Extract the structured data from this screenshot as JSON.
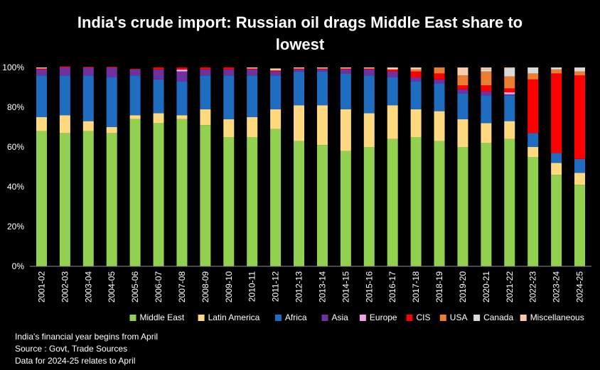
{
  "chart_data": {
    "type": "bar",
    "stacked": true,
    "title": "India's crude import: Russian oil drags Middle East share to lowest",
    "title_lines": [
      "India's crude import: Russian oil drags Middle East share to",
      "lowest"
    ],
    "categories": [
      "2001-02",
      "2002-03",
      "2003-04",
      "2004-05",
      "2005-06",
      "2006-07",
      "2007-08",
      "2008-09",
      "2009-10",
      "2010-11",
      "2011-12",
      "2012-13",
      "2013-14",
      "2014-15",
      "2015-16",
      "2016-17",
      "2017-18",
      "2018-19",
      "2019-20",
      "2020-21",
      "2021-22",
      "2022-23",
      "2023-24",
      "2024-25"
    ],
    "yticks": [
      "0%",
      "20%",
      "40%",
      "60%",
      "80%",
      "100%"
    ],
    "ylim": [
      0,
      100
    ],
    "grid": false,
    "legend_position": "bottom",
    "series": [
      {
        "name": "Middle East",
        "color": "#92D050",
        "values": [
          68,
          67,
          68,
          67,
          74,
          72,
          74,
          71,
          65,
          65,
          69,
          63,
          61,
          58,
          60,
          64,
          65,
          63,
          60,
          62,
          64,
          55,
          46,
          41
        ]
      },
      {
        "name": "Latin America",
        "color": "#FFD97F",
        "values": [
          7,
          9,
          5,
          3,
          2,
          5,
          2,
          8,
          9,
          10,
          10,
          18,
          20,
          21,
          17,
          17,
          14,
          15,
          14,
          10,
          9,
          5,
          6,
          6
        ]
      },
      {
        "name": "Africa",
        "color": "#1F6DC1",
        "values": [
          21,
          20,
          23,
          25,
          20,
          17,
          17,
          17,
          22,
          21,
          17,
          17,
          17,
          18,
          19,
          14,
          14,
          14,
          13,
          14,
          13,
          7,
          5,
          7
        ]
      },
      {
        "name": "Asia",
        "color": "#7030A0",
        "values": [
          3,
          4,
          4,
          5,
          3,
          5,
          5,
          3,
          3,
          3,
          2,
          1,
          1,
          2,
          3,
          3,
          2,
          2,
          2,
          2,
          0.5,
          0,
          0,
          0
        ]
      },
      {
        "name": "Europe",
        "color": "#F5A0E6",
        "values": [
          0,
          0,
          0,
          0,
          0,
          0,
          1,
          0,
          0,
          0,
          0,
          0,
          0,
          0,
          0,
          0,
          0,
          0,
          0,
          0,
          1,
          0,
          0,
          0
        ]
      },
      {
        "name": "CIS",
        "color": "#FF0000",
        "values": [
          0.5,
          0.5,
          0.3,
          0.3,
          0.3,
          1,
          1,
          1,
          1,
          0.5,
          0.5,
          0.5,
          0.5,
          0.5,
          0.5,
          1,
          3,
          3,
          2,
          3,
          2,
          27,
          40,
          42
        ]
      },
      {
        "name": "USA",
        "color": "#ED7D31",
        "values": [
          0,
          0,
          0,
          0,
          0,
          0,
          0,
          0,
          0,
          0,
          0,
          0,
          0,
          0,
          0,
          0,
          1,
          3,
          5,
          7,
          6,
          3,
          2,
          2
        ]
      },
      {
        "name": "Canada",
        "color": "#D9D9D9",
        "values": [
          0,
          0,
          0,
          0,
          0,
          0,
          0,
          0,
          0,
          0,
          0,
          0,
          0,
          0,
          0,
          0,
          0,
          0,
          0,
          1,
          4,
          3,
          1,
          2
        ]
      },
      {
        "name": "Miscellaneous",
        "color": "#F8CBAD",
        "values": [
          0.5,
          0,
          0,
          0,
          0,
          0,
          0,
          0,
          0,
          0.5,
          1,
          0.5,
          0.5,
          0.5,
          0.5,
          1,
          1,
          0,
          4,
          1,
          0.5,
          0,
          0,
          0
        ]
      }
    ]
  },
  "notes": [
    "India's financial year begins from April",
    "Source : Govt, Trade Sources",
    "Data for 2024-25 relates to April"
  ]
}
